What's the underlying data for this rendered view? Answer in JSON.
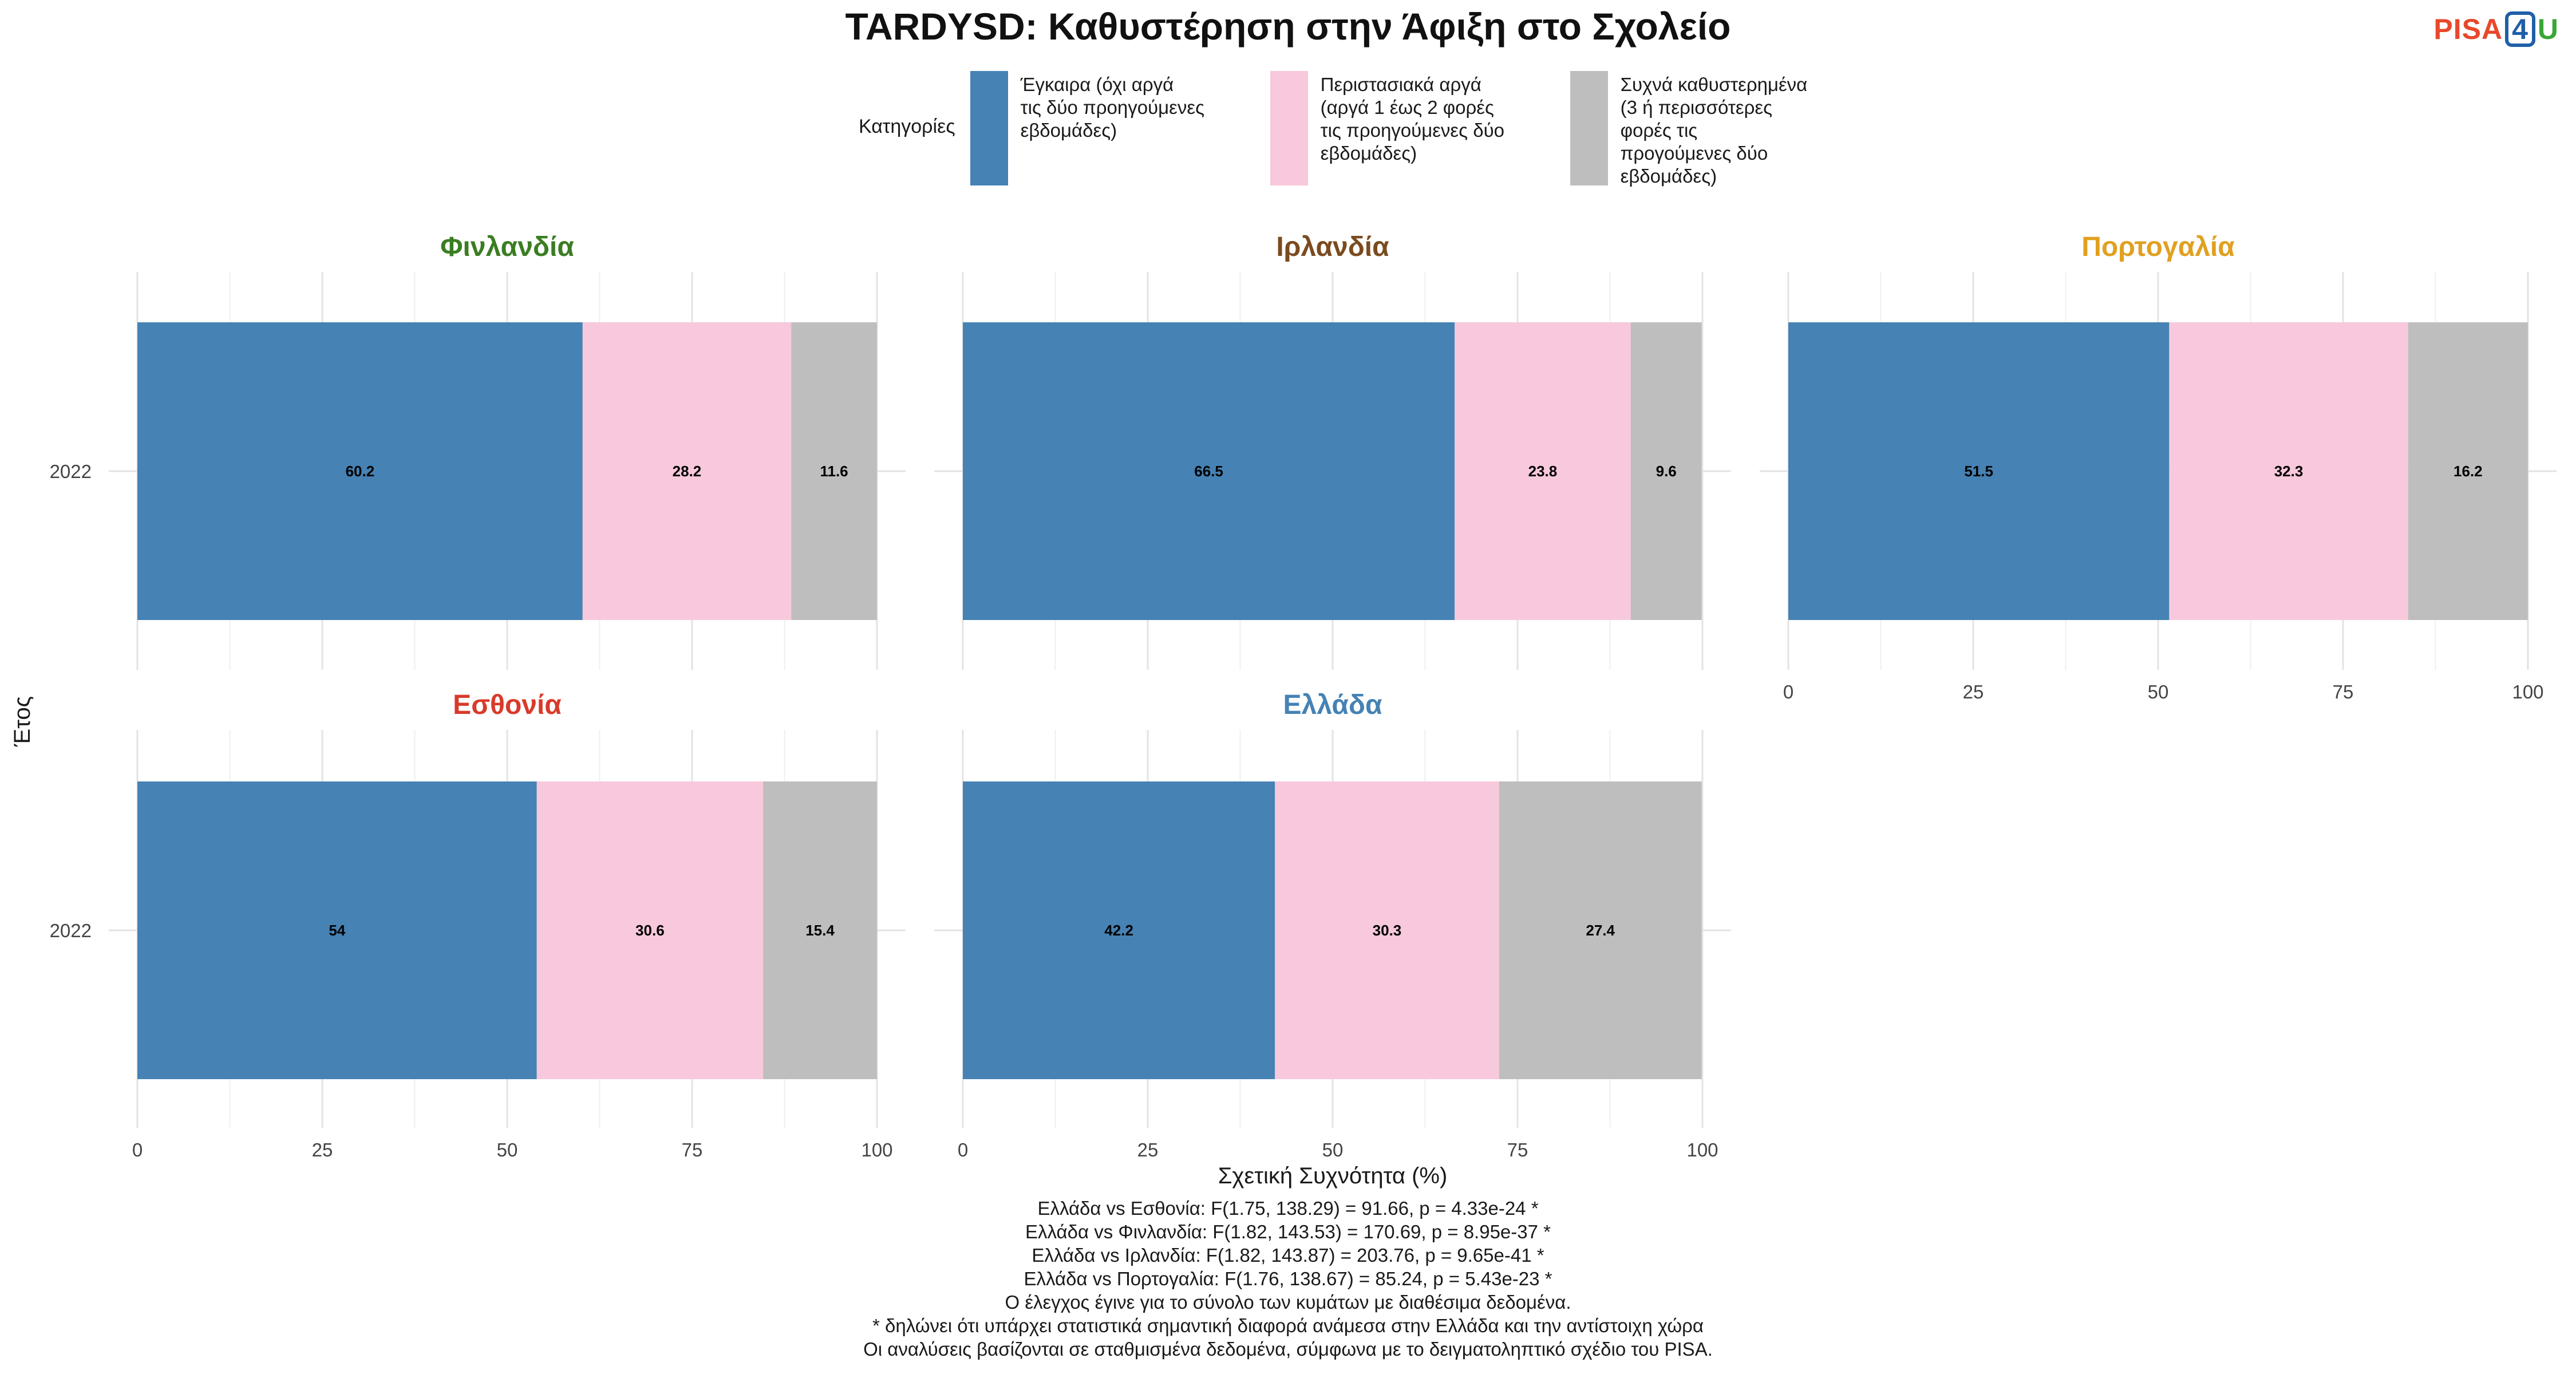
{
  "title": "TARDYSD: Καθυστέρηση στην Άφιξη στο Σχολείο",
  "logo": {
    "part1": "PISA",
    "part2": "4",
    "part3": "U"
  },
  "legend": {
    "title": "Κατηγορίες",
    "items": [
      {
        "label": "Έγκαιρα (όχι αργά\nτις δύο προηγούμενες\nεβδομάδες)",
        "color": "#4682b4"
      },
      {
        "label": "Περιστασιακά αργά\n(αργά 1 έως 2 φορές\nτις προηγούμενες δύο\nεβδομάδες)",
        "color": "#f8c8dc"
      },
      {
        "label": "Συχνά καθυστερημένα\n(3 ή περισσότερες\nφορές τις\nπρογούμενες δύο\nεβδομάδες)",
        "color": "#bebebe"
      }
    ]
  },
  "chart_data": {
    "type": "bar",
    "orientation": "horizontal",
    "stacked": true,
    "xlabel": "Σχετική Συχνότητα (%)",
    "ylabel": "Έτος",
    "xlim": [
      0,
      100
    ],
    "xticks": [
      0,
      25,
      50,
      75,
      100
    ],
    "categories": [
      "Έγκαιρα (όχι αργά τις δύο προηγούμενες εβδομάδες)",
      "Περιστασιακά αργά (αργά 1 έως 2 φορές τις προηγούμενες δύο εβδομάδες)",
      "Συχνά καθυστερημένα (3 ή περισσότερες φορές τις προγούμενες δύο εβδομάδες)"
    ],
    "colors": [
      "#4682b4",
      "#f8c8dc",
      "#bebebe"
    ],
    "grid": true,
    "legend_position": "top",
    "panels": [
      {
        "name": "Φινλανδία",
        "color": "#3a7d22",
        "year": "2022",
        "values": [
          60.2,
          28.2,
          11.6
        ],
        "labels": [
          "60.2",
          "28.2",
          "11.6"
        ]
      },
      {
        "name": "Ιρλανδία",
        "color": "#7a4b1f",
        "year": "2022",
        "values": [
          66.5,
          23.8,
          9.6
        ],
        "labels": [
          "66.5",
          "23.8",
          "9.6"
        ]
      },
      {
        "name": "Πορτογαλία",
        "color": "#e0a020",
        "year": "2022",
        "values": [
          51.5,
          32.3,
          16.2
        ],
        "labels": [
          "51.5",
          "32.3",
          "16.2"
        ]
      },
      {
        "name": "Εσθονία",
        "color": "#d93a2b",
        "year": "2022",
        "values": [
          54,
          30.6,
          15.4
        ],
        "labels": [
          "54",
          "30.6",
          "15.4"
        ]
      },
      {
        "name": "Ελλάδα",
        "color": "#4682b4",
        "year": "2022",
        "values": [
          42.2,
          30.3,
          27.4
        ],
        "labels": [
          "42.2",
          "30.3",
          "27.4"
        ]
      }
    ]
  },
  "notes": [
    "Ελλάδα vs Εσθονία: F(1.75, 138.29) = 91.66, p = 4.33e-24 *",
    "Ελλάδα vs Φινλανδία: F(1.82, 143.53) = 170.69, p = 8.95e-37 *",
    "Ελλάδα vs Ιρλανδία: F(1.82, 143.87) = 203.76, p = 9.65e-41 *",
    "Ελλάδα vs Πορτογαλία: F(1.76, 138.67) = 85.24, p = 5.43e-23 *",
    "Ο έλεγχος έγινε για το σύνολο των κυμάτων με διαθέσιμα δεδομένα.",
    "* δηλώνει ότι υπάρχει στατιστικά σημαντική διαφορά ανάμεσα στην Ελλάδα και την αντίστοιχη χώρα",
    "Οι αναλύσεις βασίζονται σε σταθμισμένα δεδομένα, σύμφωνα με το δειγματοληπτικό σχέδιο του PISA."
  ]
}
